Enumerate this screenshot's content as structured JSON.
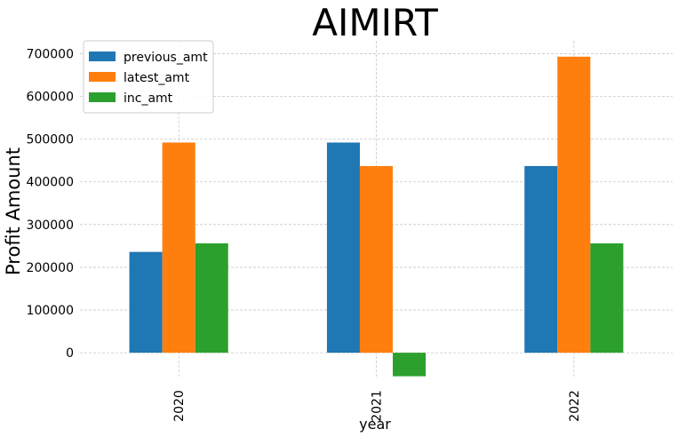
{
  "chart_data": {
    "type": "bar",
    "title": "AIMIRT",
    "xlabel": "year",
    "ylabel": "Profit Amount",
    "categories": [
      "2020",
      "2021",
      "2022"
    ],
    "series": [
      {
        "name": "previous_amt",
        "color": "#1f77b4",
        "values": [
          236000,
          492000,
          437000
        ]
      },
      {
        "name": "latest_amt",
        "color": "#ff7f0e",
        "values": [
          492000,
          437000,
          693000
        ]
      },
      {
        "name": "inc_amt",
        "color": "#2ca02c",
        "values": [
          256000,
          -55000,
          256000
        ]
      }
    ],
    "ylim": [
      -60000,
      730000
    ],
    "yticks": [
      "0",
      "100000",
      "200000",
      "300000",
      "400000",
      "500000",
      "600000",
      "700000"
    ],
    "grid": true,
    "legend_position": "top-left"
  }
}
